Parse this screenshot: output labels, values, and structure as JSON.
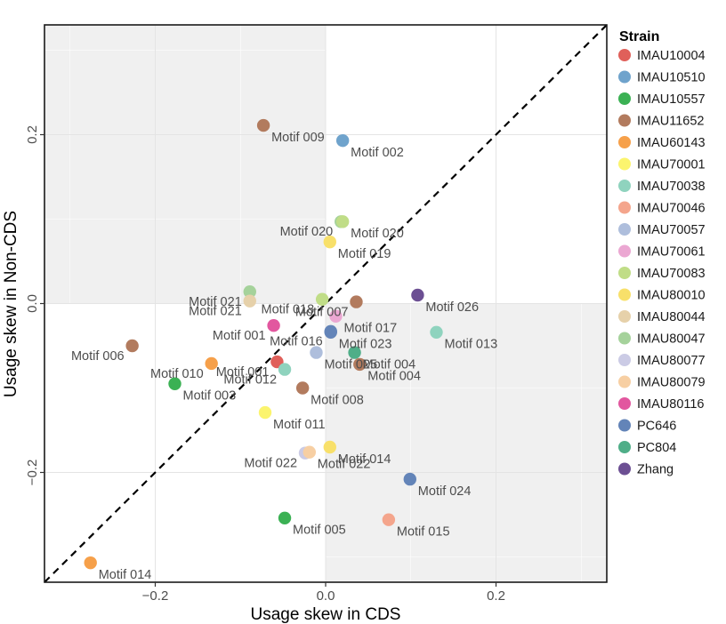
{
  "chart_data": {
    "type": "scatter",
    "xlabel": "Usage skew in CDS",
    "ylabel": "Usage skew in Non-CDS",
    "xlim": [
      -0.33,
      0.33
    ],
    "ylim": [
      -0.33,
      0.33
    ],
    "x_ticks": [
      {
        "value": -0.2,
        "label": "−0.2"
      },
      {
        "value": 0.0,
        "label": "0.0"
      },
      {
        "value": 0.2,
        "label": "0.2"
      }
    ],
    "y_ticks": [
      {
        "value": -0.2,
        "label": "−0.2"
      },
      {
        "value": 0.0,
        "label": "0.0"
      },
      {
        "value": 0.2,
        "label": "0.2"
      }
    ],
    "grid": true,
    "diagonal": "y = x (dashed)",
    "shaded_quadrants": [
      "x<0, y>0",
      "x>0, y<0"
    ],
    "legend": {
      "title": "Strain",
      "position": "right",
      "entries": [
        {
          "name": "IMAU10004",
          "color": "#E0605A"
        },
        {
          "name": "IMAU10510",
          "color": "#6FA3CC"
        },
        {
          "name": "IMAU10557",
          "color": "#3BB154"
        },
        {
          "name": "IMAU11652",
          "color": "#B27B5E"
        },
        {
          "name": "IMAU60143",
          "color": "#F6A04A"
        },
        {
          "name": "IMAU70001",
          "color": "#FBF46E"
        },
        {
          "name": "IMAU70038",
          "color": "#8FD3BE"
        },
        {
          "name": "IMAU70046",
          "color": "#F4A58C"
        },
        {
          "name": "IMAU70057",
          "color": "#AEBEDC"
        },
        {
          "name": "IMAU70061",
          "color": "#EBA7D2"
        },
        {
          "name": "IMAU70083",
          "color": "#C0DD87"
        },
        {
          "name": "IMAU80010",
          "color": "#F8E06A"
        },
        {
          "name": "IMAU80044",
          "color": "#E6D1AA"
        },
        {
          "name": "IMAU80047",
          "color": "#A5D29B"
        },
        {
          "name": "IMAU80077",
          "color": "#CBCBE5"
        },
        {
          "name": "IMAU80079",
          "color": "#F7CFA3"
        },
        {
          "name": "IMAU80116",
          "color": "#E2579F"
        },
        {
          "name": "PC646",
          "color": "#6384B8"
        },
        {
          "name": "PC804",
          "color": "#4FAE88"
        },
        {
          "name": "Zhang",
          "color": "#6C4F93"
        }
      ]
    },
    "points": [
      {
        "label": "Motif 009",
        "strain": "IMAU11652",
        "x": -0.073,
        "y": 0.211,
        "anchor": "right"
      },
      {
        "label": "Motif 002",
        "strain": "IMAU10510",
        "x": 0.02,
        "y": 0.193,
        "anchor": "right"
      },
      {
        "label": "Motif 020",
        "strain": "IMAU80047",
        "x": 0.018,
        "y": 0.097,
        "anchor": "left"
      },
      {
        "label": "Motif 020",
        "strain": "IMAU70083",
        "x": 0.02,
        "y": 0.097,
        "anchor": "right"
      },
      {
        "label": "Motif 019",
        "strain": "IMAU80010",
        "x": 0.005,
        "y": 0.073,
        "anchor": "right"
      },
      {
        "label": "Motif 021",
        "strain": "IMAU80047",
        "x": -0.089,
        "y": 0.014,
        "anchor": "left"
      },
      {
        "label": "Motif 021",
        "strain": "IMAU80044",
        "x": -0.089,
        "y": 0.003,
        "anchor": "left"
      },
      {
        "label": "Motif 018",
        "strain": "IMAU70083",
        "x": -0.004,
        "y": 0.005,
        "anchor": "left"
      },
      {
        "label": "Motif 007",
        "strain": "IMAU11652",
        "x": 0.036,
        "y": 0.002,
        "anchor": "left"
      },
      {
        "label": "Motif 026",
        "strain": "Zhang",
        "x": 0.108,
        "y": 0.01,
        "anchor": "right"
      },
      {
        "label": "Motif 001",
        "strain": "IMAU80116",
        "x": -0.061,
        "y": -0.026,
        "anchor": "left"
      },
      {
        "label": "Motif 017",
        "strain": "IMAU70061",
        "x": 0.012,
        "y": -0.015,
        "anchor": "right"
      },
      {
        "label": "Motif 016",
        "strain": "PC646",
        "x": 0.006,
        "y": -0.033,
        "anchor": "left"
      },
      {
        "label": "Motif 023",
        "strain": "PC646",
        "x": 0.006,
        "y": -0.034,
        "anchor": "right"
      },
      {
        "label": "Motif 013",
        "strain": "IMAU70038",
        "x": 0.13,
        "y": -0.034,
        "anchor": "right"
      },
      {
        "label": "Motif 006",
        "strain": "IMAU11652",
        "x": -0.227,
        "y": -0.05,
        "anchor": "left"
      },
      {
        "label": "Motif 001",
        "strain": "IMAU10004",
        "x": -0.057,
        "y": -0.069,
        "anchor": "left"
      },
      {
        "label": "Motif 004",
        "strain": "PC804",
        "x": 0.034,
        "y": -0.058,
        "anchor": "right"
      },
      {
        "label": "Motif 025",
        "strain": "IMAU70057",
        "x": -0.011,
        "y": -0.058,
        "anchor": "right"
      },
      {
        "label": "Motif 004",
        "strain": "IMAU11652",
        "x": 0.04,
        "y": -0.072,
        "anchor": "right"
      },
      {
        "label": "Motif 010",
        "strain": "IMAU60143",
        "x": -0.134,
        "y": -0.071,
        "anchor": "left"
      },
      {
        "label": "Motif 012",
        "strain": "IMAU70038",
        "x": -0.048,
        "y": -0.078,
        "anchor": "left"
      },
      {
        "label": "Motif 003",
        "strain": "IMAU10557",
        "x": -0.177,
        "y": -0.095,
        "anchor": "right"
      },
      {
        "label": "Motif 008",
        "strain": "IMAU11652",
        "x": -0.027,
        "y": -0.1,
        "anchor": "right"
      },
      {
        "label": "Motif 011",
        "strain": "IMAU70001",
        "x": -0.071,
        "y": -0.129,
        "anchor": "right"
      },
      {
        "label": "Motif 022",
        "strain": "IMAU80077",
        "x": -0.024,
        "y": -0.177,
        "anchor": "left"
      },
      {
        "label": "Motif 022",
        "strain": "IMAU80079",
        "x": -0.019,
        "y": -0.176,
        "anchor": "right"
      },
      {
        "label": "Motif 014",
        "strain": "IMAU80010",
        "x": 0.005,
        "y": -0.17,
        "anchor": "right"
      },
      {
        "label": "Motif 024",
        "strain": "PC646",
        "x": 0.099,
        "y": -0.208,
        "anchor": "right"
      },
      {
        "label": "Motif 005",
        "strain": "IMAU10557",
        "x": -0.048,
        "y": -0.254,
        "anchor": "right"
      },
      {
        "label": "Motif 015",
        "strain": "IMAU70046",
        "x": 0.074,
        "y": -0.256,
        "anchor": "right"
      },
      {
        "label": "Motif 014",
        "strain": "IMAU60143",
        "x": -0.276,
        "y": -0.307,
        "anchor": "right"
      }
    ]
  }
}
